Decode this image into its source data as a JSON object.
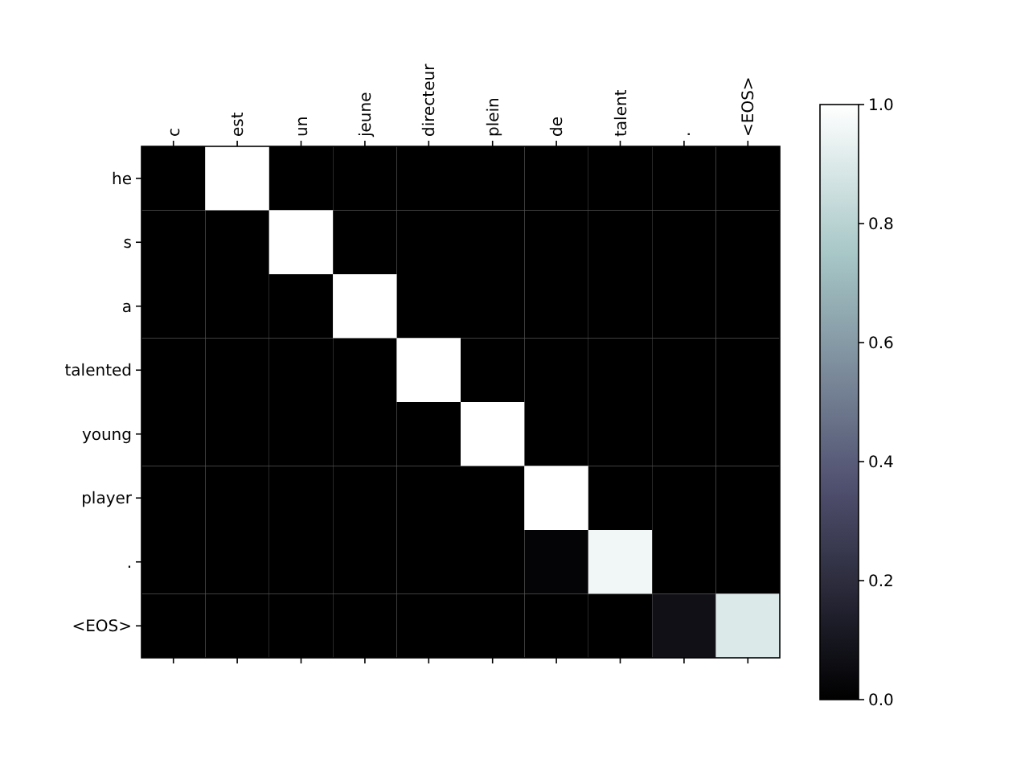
{
  "chart_data": {
    "type": "heatmap",
    "categories": [
      "c",
      "est",
      "un",
      "jeune",
      "directeur",
      "plein",
      "de",
      "talent",
      ".",
      "<EOS>"
    ],
    "y_categories": [
      "he",
      "s",
      "a",
      "talented",
      "young",
      "player",
      ".",
      "<EOS>"
    ],
    "cells": [
      [
        0,
        1,
        0,
        0,
        0,
        0,
        0,
        0,
        0,
        0
      ],
      [
        0,
        0,
        1,
        0,
        0,
        0,
        0,
        0,
        0,
        0
      ],
      [
        0,
        0,
        0,
        1,
        0,
        0,
        0,
        0,
        0,
        0
      ],
      [
        0,
        0,
        0,
        0,
        1,
        0,
        0,
        0,
        0,
        0
      ],
      [
        0,
        0,
        0,
        0,
        0,
        1,
        0,
        0,
        0,
        0
      ],
      [
        0,
        0,
        0,
        0,
        0,
        0,
        1,
        0,
        0,
        0
      ],
      [
        0,
        0,
        0,
        0,
        0,
        0,
        0.02,
        0.96,
        0,
        0
      ],
      [
        0,
        0,
        0,
        0,
        0,
        0,
        0,
        0,
        0.07,
        0.9
      ]
    ],
    "clim": [
      0,
      1
    ],
    "cticks": [
      {
        "value": 0,
        "label": "0.0"
      },
      {
        "value": 0.2,
        "label": "0.2"
      },
      {
        "value": 0.4,
        "label": "0.4"
      },
      {
        "value": 0.6,
        "label": "0.6"
      },
      {
        "value": 0.8,
        "label": "0.8"
      },
      {
        "value": 1,
        "label": "1.0"
      }
    ]
  }
}
